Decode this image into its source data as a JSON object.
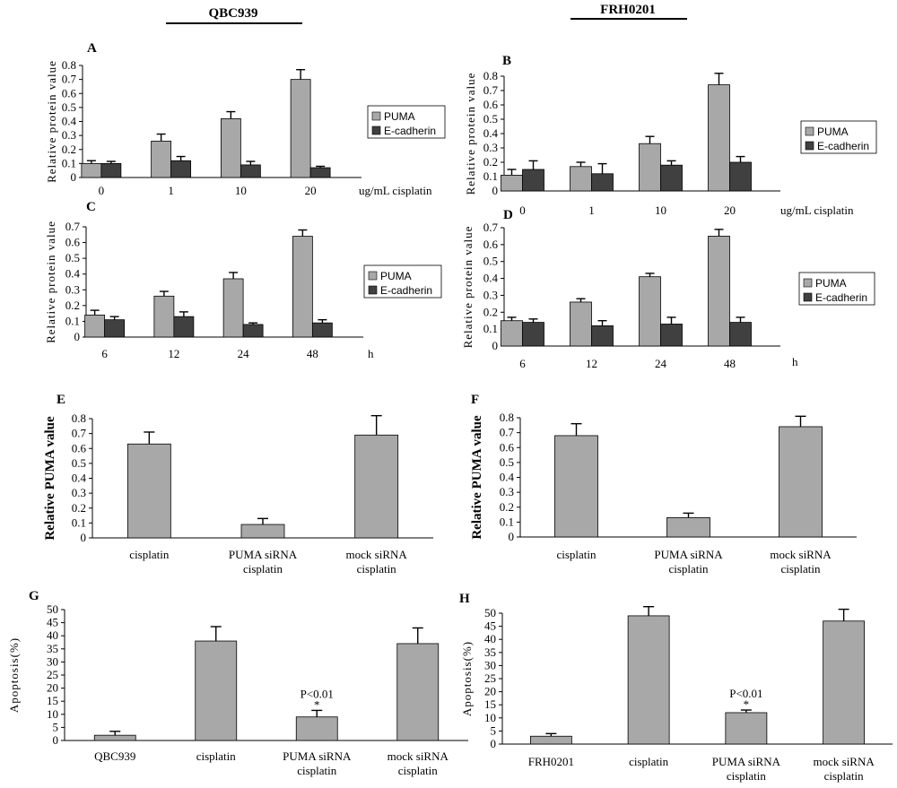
{
  "header": {
    "left": "QBC939",
    "right": "FRH0201"
  },
  "colors": {
    "light": "#a8a8a8",
    "dark": "#404040",
    "axis": "#000000"
  },
  "chart_data": [
    {
      "panel": "A",
      "type": "bar",
      "ylabel": "Relative protein value",
      "ylim": [
        0,
        0.8
      ],
      "yticks": [
        "0",
        "0.1",
        "0.2",
        "0.3",
        "0.4",
        "0.5",
        "0.6",
        "0.7",
        "0.8"
      ],
      "categories": [
        "0",
        "1",
        "10",
        "20"
      ],
      "xunit": "ug/mL cisplatin",
      "series": [
        {
          "name": "PUMA",
          "color": "light",
          "values": [
            0.1,
            0.26,
            0.42,
            0.7
          ],
          "errors": [
            0.02,
            0.05,
            0.05,
            0.07
          ]
        },
        {
          "name": "E-cadherin",
          "color": "dark",
          "values": [
            0.1,
            0.12,
            0.09,
            0.07
          ],
          "errors": [
            0.015,
            0.03,
            0.025,
            0.01
          ]
        }
      ]
    },
    {
      "panel": "B",
      "type": "bar",
      "ylabel": "Relative protein value",
      "ylim": [
        0,
        0.8
      ],
      "yticks": [
        "0",
        "0.1",
        "0.2",
        "0.3",
        "0.4",
        "0.5",
        "0.6",
        "0.7",
        "0.8"
      ],
      "categories": [
        "0",
        "1",
        "10",
        "20"
      ],
      "xunit": "ug/mL cisplatin",
      "series": [
        {
          "name": "PUMA",
          "color": "light",
          "values": [
            0.11,
            0.17,
            0.33,
            0.74
          ],
          "errors": [
            0.04,
            0.03,
            0.05,
            0.08
          ]
        },
        {
          "name": "E-cadherin",
          "color": "dark",
          "values": [
            0.15,
            0.12,
            0.18,
            0.2
          ],
          "errors": [
            0.06,
            0.07,
            0.03,
            0.04
          ]
        }
      ]
    },
    {
      "panel": "C",
      "type": "bar",
      "ylabel": "Relative protein value",
      "ylim": [
        0,
        0.7
      ],
      "yticks": [
        "0",
        "0.1",
        "0.2",
        "0.3",
        "0.4",
        "0.5",
        "0.6",
        "0.7"
      ],
      "categories": [
        "6",
        "12",
        "24",
        "48"
      ],
      "xunit": "h",
      "series": [
        {
          "name": "PUMA",
          "color": "light",
          "values": [
            0.14,
            0.26,
            0.37,
            0.64
          ],
          "errors": [
            0.03,
            0.03,
            0.04,
            0.04
          ]
        },
        {
          "name": "E-cadherin",
          "color": "dark",
          "values": [
            0.11,
            0.13,
            0.08,
            0.09
          ],
          "errors": [
            0.02,
            0.03,
            0.01,
            0.02
          ]
        }
      ]
    },
    {
      "panel": "D",
      "type": "bar",
      "ylabel": "Relative protein value",
      "ylim": [
        0,
        0.7
      ],
      "yticks": [
        "0",
        "0.1",
        "0.2",
        "0.3",
        "0.4",
        "0.5",
        "0.6",
        "0.7"
      ],
      "categories": [
        "6",
        "12",
        "24",
        "48"
      ],
      "xunit": "h",
      "series": [
        {
          "name": "PUMA",
          "color": "light",
          "values": [
            0.15,
            0.26,
            0.41,
            0.65
          ],
          "errors": [
            0.02,
            0.02,
            0.02,
            0.04
          ]
        },
        {
          "name": "E-cadherin",
          "color": "dark",
          "values": [
            0.14,
            0.12,
            0.13,
            0.14
          ],
          "errors": [
            0.02,
            0.03,
            0.04,
            0.03
          ]
        }
      ]
    },
    {
      "panel": "E",
      "type": "bar",
      "ylabel": "Relative PUMA value",
      "ylim": [
        0,
        0.8
      ],
      "yticks": [
        "0",
        "0.1",
        "0.2",
        "0.3",
        "0.4",
        "0.5",
        "0.6",
        "0.7",
        "0.8"
      ],
      "categories": [
        [
          "cisplatin"
        ],
        [
          "PUMA siRNA",
          "cisplatin"
        ],
        [
          "mock siRNA",
          "cisplatin"
        ]
      ],
      "series": [
        {
          "name": "PUMA",
          "color": "light",
          "values": [
            0.63,
            0.09,
            0.69
          ],
          "errors": [
            0.08,
            0.04,
            0.13
          ]
        }
      ]
    },
    {
      "panel": "F",
      "type": "bar",
      "ylabel": "Relative PUMA value",
      "ylim": [
        0,
        0.8
      ],
      "yticks": [
        "0",
        "0.1",
        "0.2",
        "0.3",
        "0.4",
        "0.5",
        "0.6",
        "0.7",
        "0.8"
      ],
      "categories": [
        [
          "cisplatin"
        ],
        [
          "PUMA siRNA",
          "cisplatin"
        ],
        [
          "mock siRNA",
          "cisplatin"
        ]
      ],
      "series": [
        {
          "name": "PUMA",
          "color": "light",
          "values": [
            0.68,
            0.13,
            0.74
          ],
          "errors": [
            0.08,
            0.03,
            0.07
          ]
        }
      ]
    },
    {
      "panel": "G",
      "type": "bar",
      "ylabel": "Apoptosis(%)",
      "ylim": [
        0,
        50
      ],
      "yticks": [
        "0",
        "5",
        "10",
        "15",
        "20",
        "25",
        "30",
        "35",
        "40",
        "45",
        "50"
      ],
      "categories": [
        [
          "QBC939"
        ],
        [
          "cisplatin"
        ],
        [
          "PUMA siRNA",
          "cisplatin"
        ],
        [
          "mock siRNA",
          "cisplatin"
        ]
      ],
      "series": [
        {
          "name": "Apoptosis",
          "color": "light",
          "values": [
            2,
            38,
            9,
            37
          ],
          "errors": [
            1.5,
            5.5,
            2.5,
            6
          ]
        }
      ],
      "annotation": {
        "category": 2,
        "text": "P<0.01",
        "mark": "*"
      }
    },
    {
      "panel": "H",
      "type": "bar",
      "ylabel": "Apoptosis(%)",
      "ylim": [
        0,
        50
      ],
      "yticks": [
        "0",
        "5",
        "10",
        "15",
        "20",
        "25",
        "30",
        "35",
        "40",
        "45",
        "50"
      ],
      "categories": [
        [
          "FRH0201"
        ],
        [
          "cisplatin"
        ],
        [
          "PUMA siRNA",
          "cisplatin"
        ],
        [
          "mock siRNA",
          "cisplatin"
        ]
      ],
      "series": [
        {
          "name": "Apoptosis",
          "color": "light",
          "values": [
            3,
            49,
            12,
            47
          ],
          "errors": [
            1,
            3.5,
            1,
            4.5
          ]
        }
      ],
      "annotation": {
        "category": 2,
        "text": "P<0.01",
        "mark": "*"
      }
    }
  ]
}
